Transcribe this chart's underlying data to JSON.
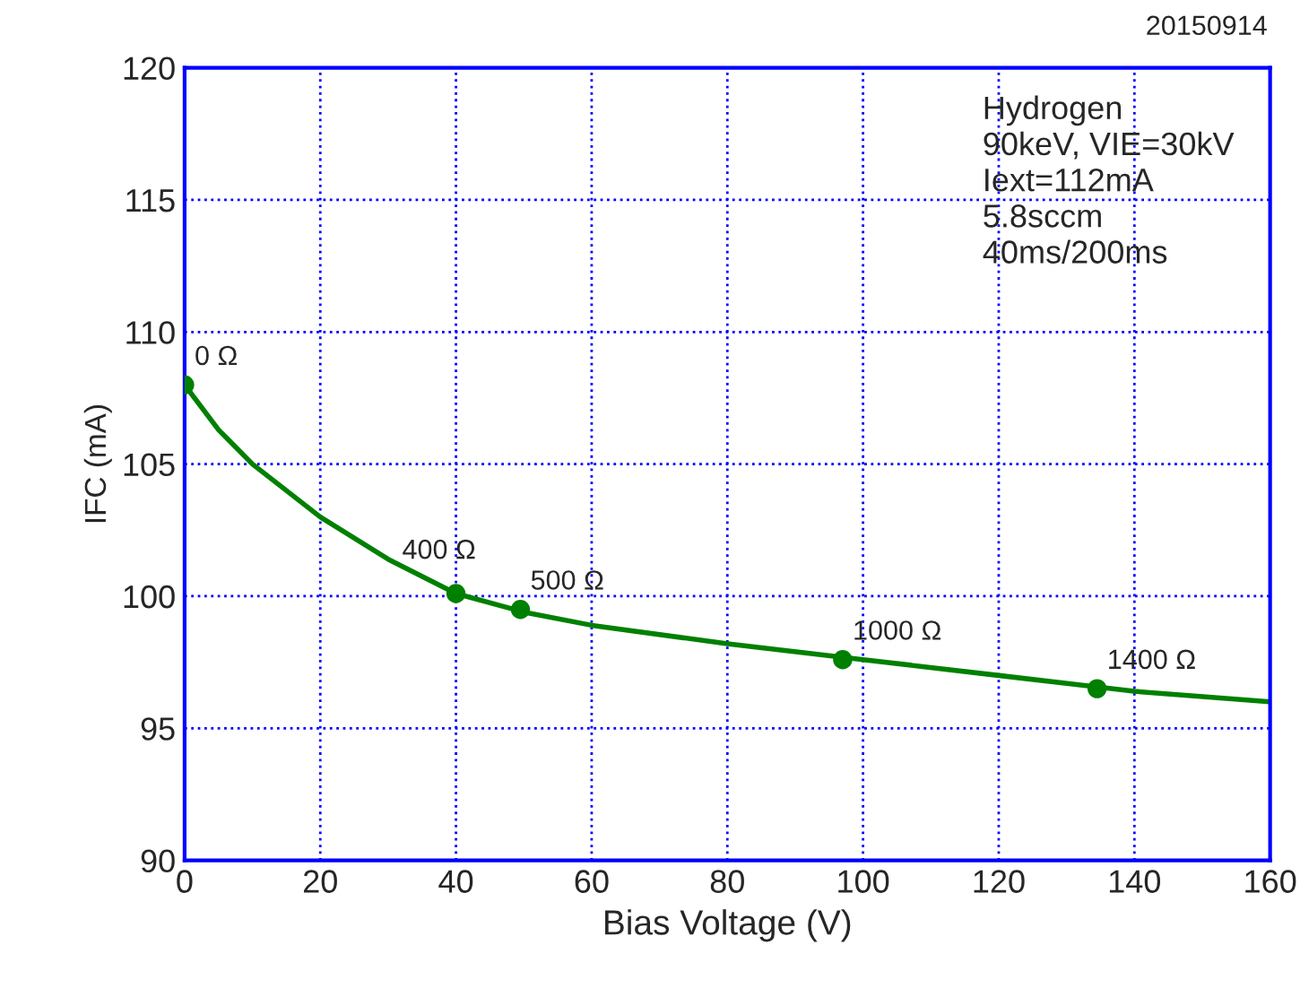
{
  "chart_data": {
    "type": "line",
    "xlabel": "Bias Voltage (V)",
    "ylabel": "IFC (mA)",
    "xlim": [
      0,
      160
    ],
    "xticks": [
      0,
      20,
      40,
      60,
      80,
      100,
      120,
      140,
      160
    ],
    "ylim": [
      90,
      120
    ],
    "yticks": [
      90,
      95,
      100,
      105,
      110,
      115,
      120
    ],
    "grid": true,
    "legend": false,
    "series": [
      {
        "color": "#008000",
        "marker": "none",
        "x": [
          0,
          5,
          10,
          20,
          30,
          40,
          50,
          60,
          80,
          100,
          120,
          140,
          160
        ],
        "values": [
          108,
          106.3,
          105,
          103,
          101.4,
          100.1,
          99.4,
          98.9,
          98.2,
          97.6,
          97.0,
          96.4,
          96.0
        ]
      },
      {
        "type": "scatter",
        "color": "#008000",
        "marker": "circle",
        "x": [
          0,
          40,
          49.5,
          97,
          134.5
        ],
        "values": [
          108,
          100.1,
          99.5,
          97.6,
          96.5
        ]
      }
    ],
    "annotations": [
      {
        "text": "0 Ω",
        "x": 0,
        "y": 108
      },
      {
        "text": "400 Ω",
        "x": 40,
        "y": 100.1
      },
      {
        "text": "500 Ω",
        "x": 49.5,
        "y": 99.5
      },
      {
        "text": "1000 Ω",
        "x": 97,
        "y": 97.6
      },
      {
        "text": "1400 Ω",
        "x": 134.5,
        "y": 96.5
      },
      "Hydrogen\n90keV, VIE=30kV\nIext=112mA\n5.8sccm\n40ms/200ms",
      "20150914"
    ]
  }
}
